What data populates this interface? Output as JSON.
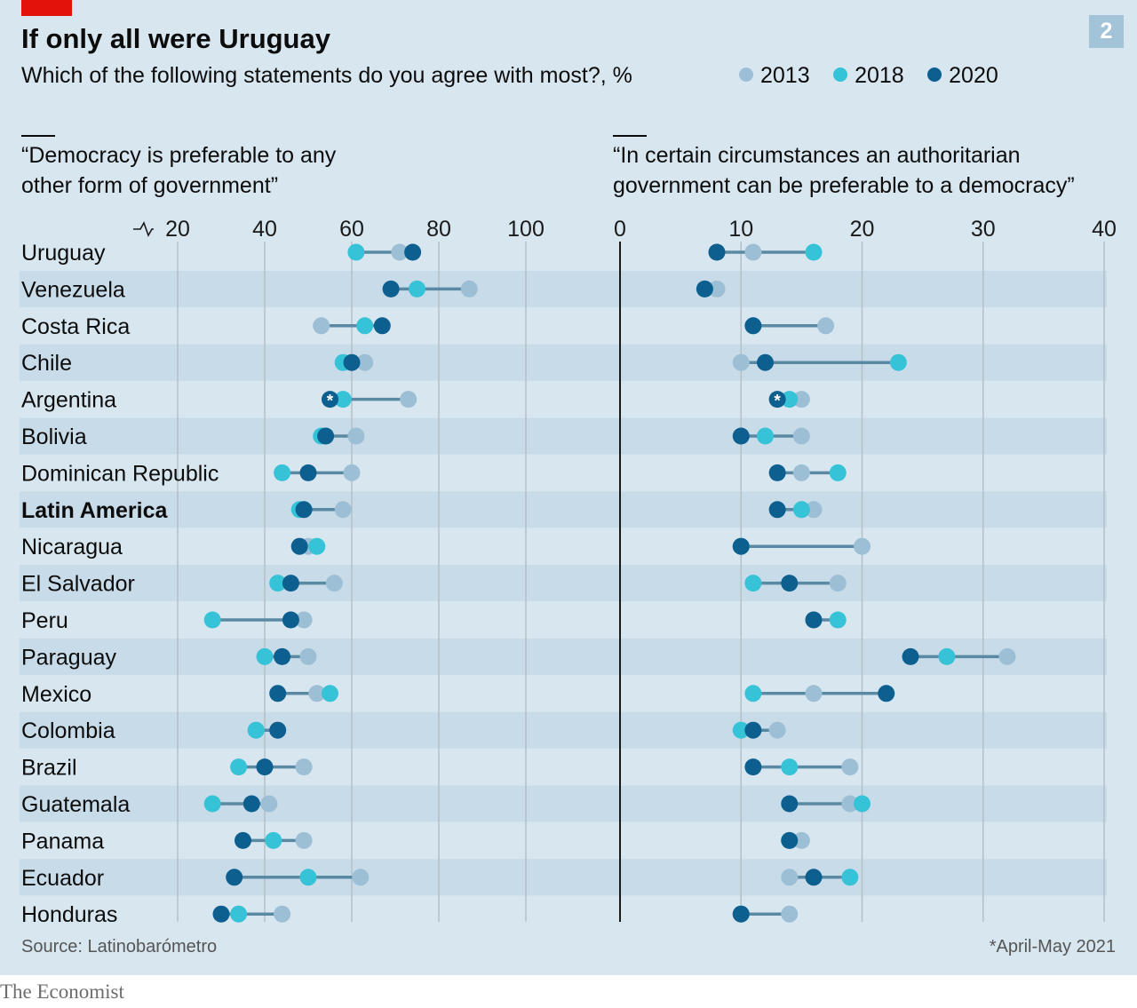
{
  "header": {
    "title": "If only all were Uruguay",
    "subtitle": "Which of the following statements do you agree with most?, %",
    "chart_number": "2"
  },
  "legend": [
    {
      "label": "2013",
      "color": "#9dbfd5"
    },
    {
      "label": "2018",
      "color": "#36c3d7"
    },
    {
      "label": "2020",
      "color": "#0d5f8f"
    }
  ],
  "footer": {
    "source": "Source: Latinobarómetro",
    "footnote": "*April-May 2021",
    "brand": "The Economist"
  },
  "chart_data": [
    {
      "type": "dumbbell",
      "title": "“Democracy is preferable to any other form of government”",
      "title_lines": [
        "“Democracy is preferable to any",
        "other form of government”"
      ],
      "xlim": [
        20,
        100
      ],
      "axis_break": true,
      "ticks": [
        "20",
        "40",
        "60",
        "80",
        "100"
      ],
      "tick_values": [
        20,
        40,
        60,
        80,
        100
      ],
      "series_names": [
        "2013",
        "2018",
        "2020"
      ],
      "categories": [
        "Uruguay",
        "Venezuela",
        "Costa Rica",
        "Chile",
        "Argentina",
        "Bolivia",
        "Dominican Republic",
        "Latin America",
        "Nicaragua",
        "El Salvador",
        "Peru",
        "Paraguay",
        "Mexico",
        "Colombia",
        "Brazil",
        "Guatemala",
        "Panama",
        "Ecuador",
        "Honduras"
      ],
      "bold_category": "Latin America",
      "values": {
        "2013": [
          71,
          87,
          53,
          63,
          73,
          61,
          60,
          58,
          50,
          56,
          49,
          50,
          52,
          38,
          49,
          41,
          49,
          62,
          44
        ],
        "2018": [
          61,
          75,
          63,
          58,
          58,
          53,
          44,
          48,
          52,
          43,
          28,
          40,
          55,
          38,
          34,
          28,
          42,
          50,
          34
        ],
        "2020": [
          74,
          69,
          67,
          60,
          55,
          54,
          50,
          49,
          48,
          46,
          46,
          44,
          43,
          43,
          40,
          37,
          35,
          33,
          30
        ]
      },
      "starred": {
        "Argentina": "2020"
      }
    },
    {
      "type": "dumbbell",
      "title": "“In certain circumstances an authoritarian government can be preferable to a democracy”",
      "title_lines": [
        "“In certain circumstances an authoritarian",
        "government can be preferable to a democracy”"
      ],
      "xlim": [
        0,
        40
      ],
      "axis_break": false,
      "ticks": [
        "0",
        "10",
        "20",
        "30",
        "40"
      ],
      "tick_values": [
        0,
        10,
        20,
        30,
        40
      ],
      "series_names": [
        "2013",
        "2018",
        "2020"
      ],
      "categories": [
        "Uruguay",
        "Venezuela",
        "Costa Rica",
        "Chile",
        "Argentina",
        "Bolivia",
        "Dominican Republic",
        "Latin America",
        "Nicaragua",
        "El Salvador",
        "Peru",
        "Paraguay",
        "Mexico",
        "Colombia",
        "Brazil",
        "Guatemala",
        "Panama",
        "Ecuador",
        "Honduras"
      ],
      "values": {
        "2013": [
          11,
          8,
          17,
          10,
          15,
          15,
          15,
          16,
          20,
          18,
          16,
          32,
          16,
          13,
          19,
          19,
          15,
          14,
          14
        ],
        "2018": [
          16,
          7,
          11,
          23,
          14,
          12,
          18,
          15,
          10,
          11,
          18,
          27,
          11,
          10,
          14,
          20,
          14,
          19,
          10
        ],
        "2020": [
          8,
          7,
          11,
          12,
          13,
          10,
          13,
          13,
          10,
          14,
          16,
          24,
          22,
          11,
          11,
          14,
          14,
          16,
          10
        ]
      },
      "starred": {
        "Argentina": "2020"
      }
    }
  ]
}
